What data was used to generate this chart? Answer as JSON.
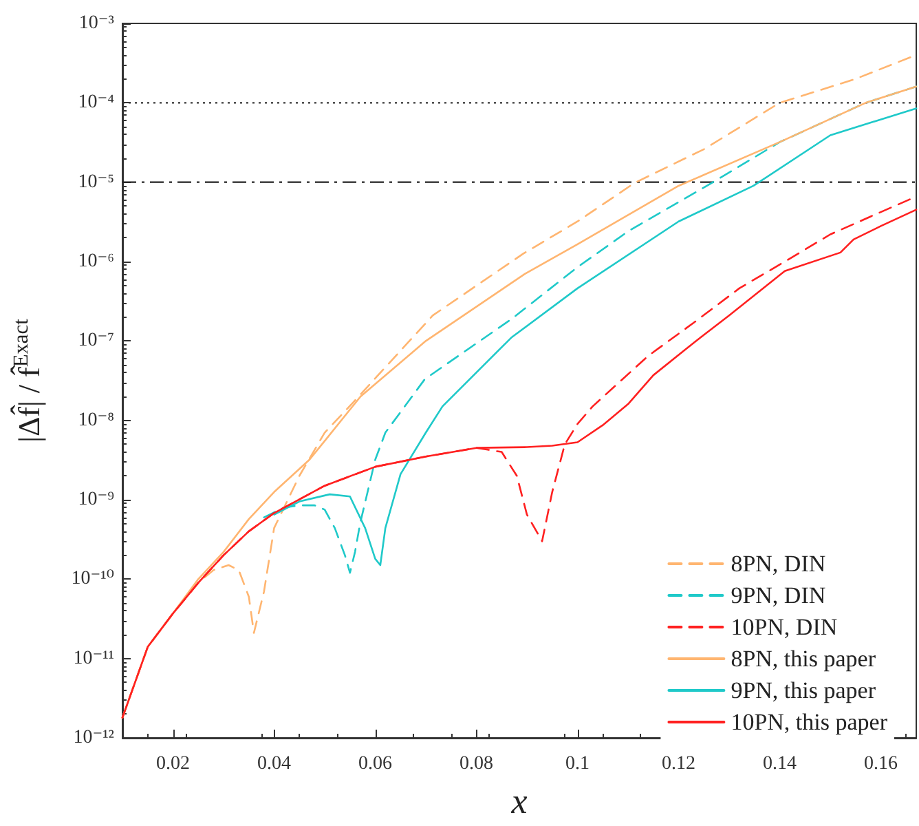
{
  "chart_data": {
    "type": "line",
    "xlabel": "x",
    "ylabel": "|Δf̂| / f̂$^{Exact}$",
    "log": "y",
    "grid": false,
    "legend": "bottom right",
    "marker": "none",
    "xlim": [
      0.01,
      0.167
    ],
    "xticks": [
      0.02,
      0.04,
      0.06,
      0.08,
      0.1,
      0.12,
      0.14,
      0.16
    ],
    "ylim": [
      1e-12,
      0.001
    ],
    "yticks": [
      {
        "value": 1e-12,
        "label": "10⁻¹²"
      },
      {
        "value": 1e-11,
        "label": "10⁻¹¹"
      },
      {
        "value": 1e-10,
        "label": "10⁻¹⁰"
      },
      {
        "value": 1e-09,
        "label": "10⁻⁹"
      },
      {
        "value": 1e-08,
        "label": "10⁻⁸"
      },
      {
        "value": 1e-07,
        "label": "10⁻⁷"
      },
      {
        "value": 1e-06,
        "label": "10⁻⁶"
      },
      {
        "value": 1e-05,
        "label": "10⁻⁵"
      },
      {
        "value": 0.0001,
        "label": "10⁻⁴"
      },
      {
        "value": 0.001,
        "label": "10⁻³"
      }
    ],
    "ref_lines": [
      {
        "axis": "y",
        "value": 0.0001,
        "color": "#333333",
        "line_style": "dotted"
      },
      {
        "axis": "y",
        "value": 1e-05,
        "color": "#222222",
        "line_style": "dashdot"
      }
    ],
    "series": [
      {
        "name": "8PN, DIN",
        "color": "#ffb570",
        "line_style": "dashed",
        "x": [
          0.01,
          0.015,
          0.02,
          0.025,
          0.028,
          0.031,
          0.033,
          0.035,
          0.036,
          0.038,
          0.04,
          0.045,
          0.05,
          0.0557,
          0.0714,
          0.0893,
          0.1,
          0.1113,
          0.125,
          0.14,
          0.155,
          0.167
        ],
        "values": [
          1.8e-12,
          1.4e-11,
          3.7e-11,
          9e-11,
          1.3e-10,
          1.5e-10,
          1.3e-10,
          6e-11,
          2.1e-11,
          7e-11,
          4.4e-10,
          2e-09,
          7e-09,
          1.7e-08,
          2.1e-07,
          1.26e-06,
          3.2e-06,
          9.8e-06,
          2.6e-05,
          0.0001,
          0.0002,
          0.0004
        ]
      },
      {
        "name": "9PN, DIN",
        "color": "#1fc9c9",
        "line_style": "dashed",
        "x": [
          0.038,
          0.042,
          0.045,
          0.048,
          0.05,
          0.052,
          0.054,
          0.055,
          0.056,
          0.057,
          0.06,
          0.062,
          0.0698,
          0.087,
          0.1,
          0.11,
          0.1256,
          0.14,
          0.157,
          0.167
        ],
        "values": [
          6e-10,
          8e-10,
          8.5e-10,
          8.5e-10,
          7.5e-10,
          4.4e-10,
          2e-10,
          1.2e-10,
          2.2e-10,
          5e-10,
          3.2e-09,
          7e-09,
          3.3e-08,
          1.9e-07,
          8.5e-07,
          2.4e-06,
          9e-06,
          3.2e-05,
          0.0001,
          0.00016
        ]
      },
      {
        "name": "10PN, DIN",
        "color": "#ff2020",
        "line_style": "dashed",
        "x": [
          0.01,
          0.015,
          0.02,
          0.025,
          0.03,
          0.035,
          0.04,
          0.05,
          0.06,
          0.07,
          0.08,
          0.085,
          0.088,
          0.09,
          0.093,
          0.095,
          0.0975,
          0.1,
          0.103,
          0.114,
          0.123,
          0.132,
          0.141,
          0.15,
          0.158,
          0.167
        ],
        "values": [
          1.8e-12,
          1.4e-11,
          3.7e-11,
          9e-11,
          2e-10,
          4e-10,
          6.8e-10,
          1.5e-09,
          2.6e-09,
          3.5e-09,
          4.5e-09,
          4e-09,
          2e-09,
          6.5e-10,
          3e-10,
          1.25e-09,
          5e-09,
          9e-09,
          1.5e-08,
          6.5e-08,
          1.7e-07,
          4.6e-07,
          1e-06,
          2.2e-06,
          3.7e-06,
          6.6e-06
        ]
      },
      {
        "name": "8PN, this paper",
        "color": "#ffb570",
        "line_style": "solid",
        "x": [
          0.01,
          0.015,
          0.02,
          0.025,
          0.03,
          0.035,
          0.04,
          0.047,
          0.05,
          0.0571,
          0.07,
          0.0896,
          0.1,
          0.12,
          0.14,
          0.157,
          0.167
        ],
        "values": [
          1.8e-12,
          1.4e-11,
          3.7e-11,
          1e-10,
          2.2e-10,
          5.7e-10,
          1.25e-09,
          3.2e-09,
          5.5e-09,
          2e-08,
          1e-07,
          7e-07,
          1.65e-06,
          9e-06,
          3.2e-05,
          0.0001,
          0.00016
        ]
      },
      {
        "name": "9PN, this paper",
        "color": "#1fc9c9",
        "line_style": "solid",
        "x": [
          0.04,
          0.045,
          0.051,
          0.055,
          0.058,
          0.06,
          0.061,
          0.062,
          0.065,
          0.07,
          0.0733,
          0.0869,
          0.1,
          0.12,
          0.1348,
          0.15,
          0.167
        ],
        "values": [
          6.5e-10,
          9.5e-10,
          1.17e-09,
          1.1e-09,
          4.4e-10,
          1.8e-10,
          1.5e-10,
          4.4e-10,
          2.1e-09,
          7e-09,
          1.5e-08,
          1.1e-07,
          4.6e-07,
          3.2e-06,
          9e-06,
          3.9e-05,
          8.5e-05
        ]
      },
      {
        "name": "10PN, this paper",
        "color": "#ff2020",
        "line_style": "solid",
        "x": [
          0.01,
          0.015,
          0.02,
          0.025,
          0.03,
          0.035,
          0.04,
          0.05,
          0.06,
          0.07,
          0.08,
          0.09,
          0.095,
          0.1,
          0.105,
          0.11,
          0.115,
          0.123,
          0.13,
          0.141,
          0.152,
          0.1546,
          0.16,
          0.167
        ],
        "values": [
          1.8e-12,
          1.4e-11,
          3.7e-11,
          9e-11,
          2e-10,
          4e-10,
          6.8e-10,
          1.5e-09,
          2.6e-09,
          3.5e-09,
          4.5e-09,
          4.6e-09,
          4.8e-09,
          5.3e-09,
          8.7e-09,
          1.6e-08,
          3.7e-08,
          9.5e-08,
          2.1e-07,
          7.6e-07,
          1.3e-06,
          1.9e-06,
          2.8e-06,
          4.5e-06
        ]
      }
    ]
  }
}
